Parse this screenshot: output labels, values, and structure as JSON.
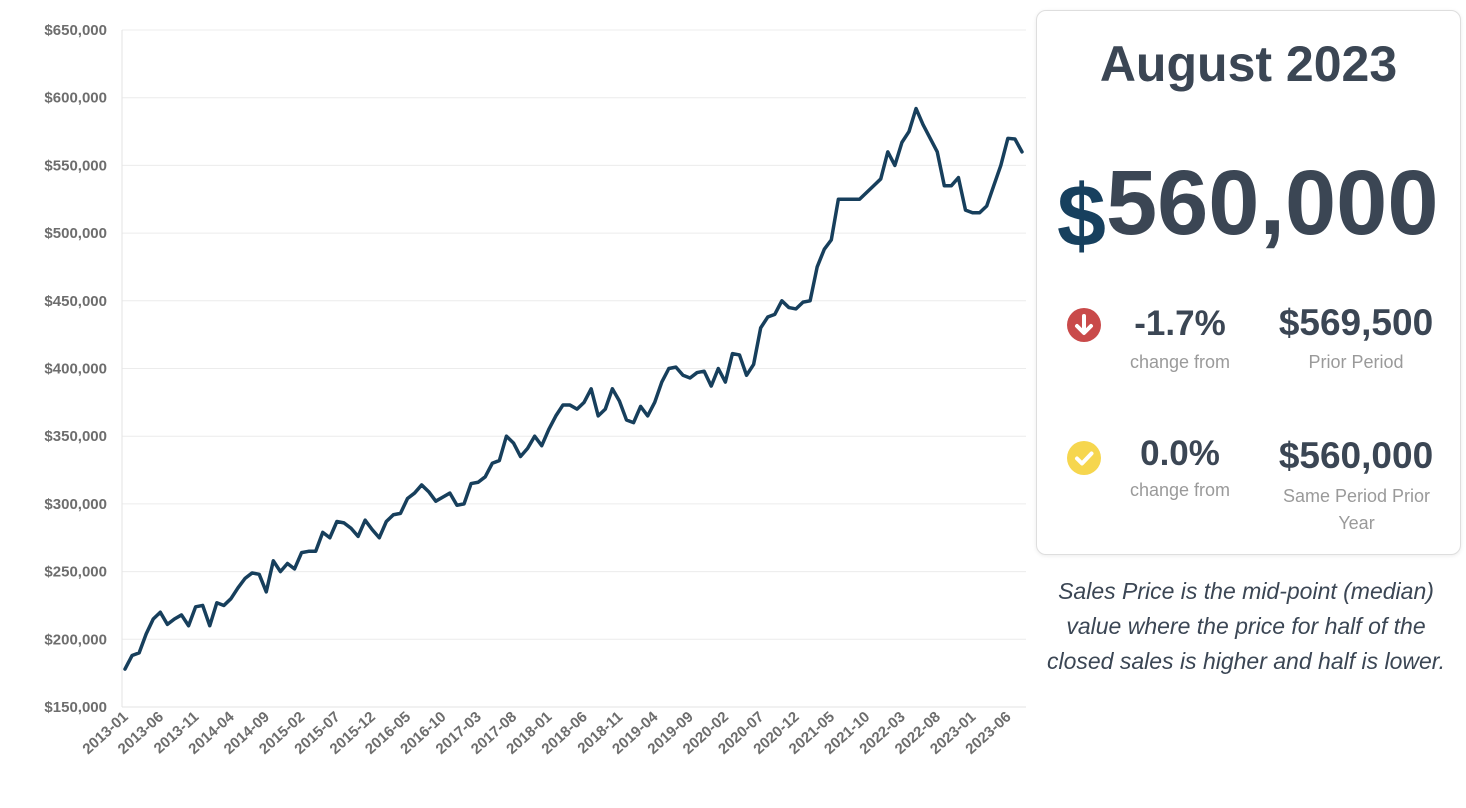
{
  "chart_data": {
    "type": "line",
    "title": "",
    "xlabel": "",
    "ylabel": "",
    "ylim": [
      150000,
      650000
    ],
    "yticks": [
      "$650,000",
      "$600,000",
      "$550,000",
      "$500,000",
      "$450,000",
      "$400,000",
      "$350,000",
      "$300,000",
      "$250,000",
      "$200,000",
      "$150,000"
    ],
    "ytick_values": [
      650000,
      600000,
      550000,
      500000,
      450000,
      400000,
      350000,
      300000,
      250000,
      200000,
      150000
    ],
    "xticks": [
      "2013-01",
      "2013-06",
      "2013-11",
      "2014-04",
      "2014-09",
      "2015-02",
      "2015-07",
      "2015-12",
      "2016-05",
      "2016-10",
      "2017-03",
      "2017-08",
      "2018-01",
      "2018-06",
      "2018-11",
      "2019-04",
      "2019-09",
      "2020-02",
      "2020-07",
      "2020-12",
      "2021-05",
      "2021-10",
      "2022-03",
      "2022-08",
      "2023-01",
      "2023-06"
    ],
    "grid": true,
    "line_color": "#173f5c",
    "series": [
      {
        "values": [
          178000,
          188000,
          190000,
          204000,
          215000,
          220000,
          211000,
          215000,
          218000,
          210000,
          224000,
          225000,
          210000,
          227000,
          225000,
          230000,
          238000,
          245000,
          249000,
          248000,
          235000,
          258000,
          250000,
          256000,
          252000,
          264000,
          265000,
          265000,
          279000,
          275000,
          287000,
          286000,
          282000,
          276000,
          288000,
          281000,
          275000,
          287000,
          292000,
          293000,
          304000,
          308000,
          314000,
          309000,
          302000,
          305000,
          308000,
          299000,
          300000,
          315000,
          316000,
          320000,
          330000,
          332000,
          350000,
          345000,
          335000,
          341000,
          350000,
          343000,
          355000,
          365000,
          373000,
          373000,
          370000,
          375000,
          385000,
          365000,
          370000,
          385000,
          376000,
          362000,
          360000,
          372000,
          365000,
          375000,
          390000,
          400000,
          401000,
          395000,
          393000,
          397000,
          398000,
          387000,
          400000,
          390000,
          411000,
          410000,
          395000,
          403000,
          430000,
          438000,
          440000,
          450000,
          445000,
          444000,
          449000,
          450000,
          475000,
          488000,
          495000,
          525000,
          525000,
          525000,
          525000,
          530000,
          535000,
          540000,
          560000,
          550000,
          567000,
          575000,
          592000,
          580000,
          570000,
          560000,
          535000,
          535000,
          541000,
          517000,
          515000,
          515000,
          520000,
          535000,
          550000,
          570000,
          569500,
          560000
        ]
      }
    ]
  },
  "summary": {
    "period": "August 2023",
    "currency_symbol": "$",
    "price": "560,000",
    "stats": [
      {
        "icon": "arrow-down-circle-icon",
        "icon_color": "#c94a4a",
        "percent": "-1.7%",
        "percent_label": "change from",
        "value": "$569,500",
        "value_label": "Prior Period"
      },
      {
        "icon": "check-circle-icon",
        "icon_color": "#f6d64e",
        "percent": "0.0%",
        "percent_label": "change from",
        "value": "$560,000",
        "value_label": "Same Period Prior Year"
      }
    ]
  },
  "note": "Sales Price is the mid-point (median) value where the price for half of the closed sales is higher and half is lower."
}
